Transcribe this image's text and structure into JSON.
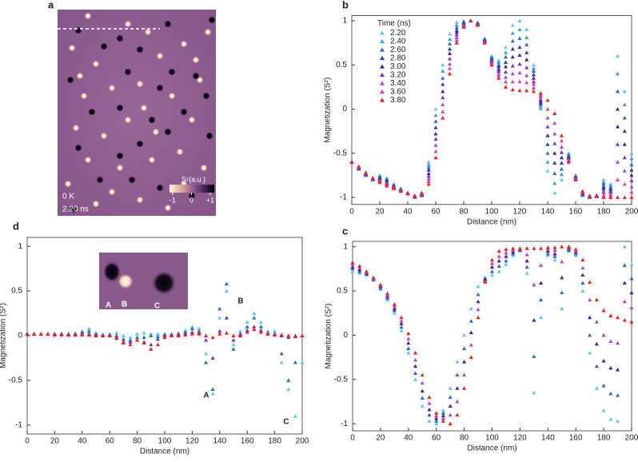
{
  "image_panel": {
    "label": "a",
    "temperature": "0 K",
    "time": "2.20 ns",
    "colorbar": {
      "label": "Sᶻ(a.u.)",
      "lim": [
        -1,
        1
      ],
      "ticks": [
        -1,
        0,
        {
          "value": 1,
          "label": "+1"
        }
      ]
    },
    "inset_labels": [
      "A",
      "B",
      "C"
    ]
  },
  "chart_data": [
    {
      "label": "b",
      "type": "scatter",
      "marker": "triangle",
      "xlabel": "Distance (nm)",
      "ylabel": "Magnetization (Sᶻ)",
      "x": [
        0,
        5,
        10,
        15,
        20,
        25,
        30,
        35,
        40,
        45,
        50,
        55,
        60,
        65,
        70,
        75,
        80,
        85,
        90,
        95,
        100,
        105,
        110,
        115,
        120,
        125,
        130,
        135,
        140,
        145,
        150,
        155,
        160,
        165,
        170,
        175,
        180,
        185,
        190,
        195,
        200
      ],
      "xlim": [
        0,
        200
      ],
      "xticks": [
        0,
        20,
        40,
        60,
        80,
        100,
        120,
        140,
        160,
        180,
        200
      ],
      "ylim": [
        -1.08,
        1.06
      ],
      "yticks": [
        -1,
        -0.5,
        0,
        0.5,
        1
      ],
      "legend_title": "Time (ns)",
      "legend": "top-left",
      "series": [
        {
          "name": "2.20",
          "color": "#5cc9f2",
          "values": [
            -0.6,
            -0.68,
            -0.75,
            -0.8,
            -0.75,
            -0.78,
            -0.85,
            -0.9,
            -0.95,
            -1,
            -0.98,
            -0.6,
            0,
            0.5,
            0.85,
            0.98,
            1,
            1,
            0.98,
            0.8,
            0.6,
            0.55,
            0.7,
            0.95,
            1,
            0.9,
            0.5,
            0,
            -0.7,
            -0.95,
            -0.8,
            -0.5,
            -0.75,
            -0.98,
            -1,
            -0.98,
            -0.8,
            -0.85,
            0.6,
            0.2,
            -0.5
          ]
        },
        {
          "name": "2.40",
          "color": "#3a9ee0",
          "values": [
            -0.6,
            -0.68,
            -0.75,
            -0.8,
            -0.76,
            -0.79,
            -0.86,
            -0.9,
            -0.95,
            -1,
            -0.98,
            -0.63,
            -0.07,
            0.43,
            0.79,
            0.95,
            0.99,
            1,
            0.98,
            0.79,
            0.59,
            0.53,
            0.64,
            0.86,
            0.9,
            0.81,
            0.46,
            0.02,
            -0.6,
            -0.84,
            -0.74,
            -0.51,
            -0.76,
            -0.97,
            -1,
            -0.98,
            -0.83,
            -0.87,
            0.4,
            0.05,
            -0.56
          ]
        },
        {
          "name": "2.60",
          "color": "#2a6cc6",
          "values": [
            -0.6,
            -0.67,
            -0.74,
            -0.8,
            -0.77,
            -0.8,
            -0.86,
            -0.91,
            -0.95,
            -0.99,
            -0.97,
            -0.66,
            -0.14,
            0.35,
            0.74,
            0.92,
            0.98,
            1,
            0.97,
            0.79,
            0.58,
            0.5,
            0.59,
            0.77,
            0.8,
            0.73,
            0.43,
            0.05,
            -0.5,
            -0.73,
            -0.68,
            -0.53,
            -0.76,
            -0.97,
            -1,
            -0.98,
            -0.85,
            -0.89,
            0.2,
            -0.1,
            -0.63
          ]
        },
        {
          "name": "2.80",
          "color": "#2b3f9e",
          "values": [
            -0.6,
            -0.67,
            -0.74,
            -0.79,
            -0.78,
            -0.81,
            -0.87,
            -0.91,
            -0.95,
            -0.99,
            -0.97,
            -0.69,
            -0.21,
            0.28,
            0.68,
            0.89,
            0.97,
            1,
            0.97,
            0.78,
            0.56,
            0.48,
            0.53,
            0.68,
            0.7,
            0.64,
            0.39,
            0.07,
            -0.4,
            -0.61,
            -0.61,
            -0.54,
            -0.77,
            -0.96,
            -0.99,
            -0.98,
            -0.88,
            -0.91,
            0,
            -0.25,
            -0.69
          ]
        },
        {
          "name": "3.00",
          "color": "#4a2192",
          "values": [
            -0.6,
            -0.67,
            -0.74,
            -0.79,
            -0.79,
            -0.83,
            -0.88,
            -0.92,
            -0.95,
            -0.99,
            -0.97,
            -0.73,
            -0.28,
            0.2,
            0.63,
            0.87,
            0.97,
            1,
            0.97,
            0.78,
            0.55,
            0.45,
            0.48,
            0.59,
            0.61,
            0.56,
            0.35,
            0.09,
            -0.3,
            -0.5,
            -0.55,
            -0.55,
            -0.78,
            -0.96,
            -0.99,
            -0.98,
            -0.9,
            -0.93,
            -0.2,
            -0.4,
            -0.75
          ]
        },
        {
          "name": "3.20",
          "color": "#7b30c2",
          "values": [
            -0.6,
            -0.66,
            -0.73,
            -0.79,
            -0.8,
            -0.84,
            -0.88,
            -0.92,
            -0.96,
            -0.99,
            -0.96,
            -0.76,
            -0.34,
            0.13,
            0.57,
            0.84,
            0.96,
            1,
            0.96,
            0.77,
            0.54,
            0.43,
            0.42,
            0.49,
            0.51,
            0.47,
            0.31,
            0.11,
            -0.2,
            -0.39,
            -0.49,
            -0.56,
            -0.78,
            -0.95,
            -0.99,
            -0.99,
            -0.93,
            -0.94,
            -0.4,
            -0.55,
            -0.81
          ]
        },
        {
          "name": "3.40",
          "color": "#b142d2",
          "values": [
            -0.6,
            -0.66,
            -0.73,
            -0.79,
            -0.81,
            -0.85,
            -0.89,
            -0.92,
            -0.96,
            -0.99,
            -0.96,
            -0.79,
            -0.41,
            0.05,
            0.51,
            0.81,
            0.95,
            1,
            0.96,
            0.76,
            0.53,
            0.4,
            0.36,
            0.4,
            0.41,
            0.38,
            0.28,
            0.14,
            -0.1,
            -0.28,
            -0.43,
            -0.58,
            -0.79,
            -0.94,
            -0.99,
            -0.99,
            -0.95,
            -0.96,
            -0.6,
            -0.7,
            -0.88
          ]
        },
        {
          "name": "3.60",
          "color": "#e2409f",
          "values": [
            -0.6,
            -0.65,
            -0.72,
            -0.78,
            -0.82,
            -0.86,
            -0.89,
            -0.93,
            -0.96,
            -0.98,
            -0.95,
            -0.82,
            -0.48,
            -0.03,
            0.46,
            0.78,
            0.94,
            1,
            0.95,
            0.76,
            0.51,
            0.38,
            0.31,
            0.31,
            0.31,
            0.3,
            0.24,
            0.16,
            0,
            -0.16,
            -0.36,
            -0.59,
            -0.79,
            -0.94,
            -0.98,
            -0.99,
            -0.98,
            -0.98,
            -0.8,
            -0.85,
            -0.94
          ]
        },
        {
          "name": "3.80",
          "color": "#f01e1e",
          "values": [
            -0.6,
            -0.65,
            -0.72,
            -0.78,
            -0.83,
            -0.87,
            -0.9,
            -0.93,
            -0.96,
            -0.98,
            -0.95,
            -0.85,
            -0.55,
            -0.1,
            0.4,
            0.75,
            0.93,
            1,
            0.95,
            0.75,
            0.5,
            0.35,
            0.25,
            0.22,
            0.21,
            0.21,
            0.2,
            0.18,
            0.1,
            -0.05,
            -0.3,
            -0.6,
            -0.8,
            -0.93,
            -0.98,
            -0.99,
            -1,
            -1,
            -1,
            -1,
            -1
          ]
        }
      ]
    },
    {
      "label": "c",
      "type": "scatter",
      "marker": "triangle",
      "xlabel": "Distance (nm)",
      "ylabel": "Magnetization (Sᶻ)",
      "x": [
        0,
        5,
        10,
        15,
        20,
        25,
        30,
        35,
        40,
        45,
        50,
        55,
        60,
        65,
        70,
        75,
        80,
        85,
        90,
        95,
        100,
        105,
        110,
        115,
        120,
        125,
        130,
        135,
        140,
        145,
        150,
        155,
        160,
        165,
        170,
        175,
        180,
        185,
        190,
        195,
        200
      ],
      "xlim": [
        0,
        200
      ],
      "xticks": [
        0,
        20,
        40,
        60,
        80,
        100,
        120,
        140,
        160,
        180,
        200
      ],
      "ylim": [
        -1.08,
        1.06
      ],
      "yticks": [
        -1,
        -0.5,
        0,
        0.5,
        1
      ],
      "series": [
        {
          "color": "#5cc9f2",
          "values": [
            0.72,
            0.7,
            0.68,
            0.62,
            0.52,
            0.4,
            0.25,
            0.05,
            -0.2,
            -0.5,
            -0.8,
            -0.97,
            -1,
            -0.85,
            -0.6,
            -0.3,
            0,
            0.3,
            0.55,
            0.65,
            0.68,
            0.72,
            0.8,
            0.9,
            0.95,
            0.7,
            -0.65,
            0.2,
            0.9,
            0.85,
            0.3,
            0.95,
            0.9,
            0.5,
            -0.2,
            -0.6,
            -0.85,
            -0.95,
            -0.97,
            1,
            0.8
          ]
        },
        {
          "color": "#2a6cc6",
          "values": [
            0.75,
            0.72,
            0.69,
            0.63,
            0.53,
            0.42,
            0.28,
            0.09,
            -0.15,
            -0.43,
            -0.71,
            -0.9,
            -0.97,
            -0.88,
            -0.7,
            -0.45,
            -0.15,
            0.16,
            0.46,
            0.64,
            0.72,
            0.78,
            0.84,
            0.92,
            0.96,
            0.77,
            -0.24,
            0.4,
            0.92,
            0.89,
            0.48,
            0.96,
            0.92,
            0.59,
            0,
            -0.35,
            -0.57,
            -0.66,
            -0.68,
            0.79,
            0.64
          ]
        },
        {
          "color": "#4a2192",
          "values": [
            0.77,
            0.74,
            0.7,
            0.64,
            0.55,
            0.44,
            0.3,
            0.13,
            -0.09,
            -0.35,
            -0.63,
            -0.84,
            -0.94,
            -0.91,
            -0.8,
            -0.6,
            -0.3,
            0.03,
            0.38,
            0.63,
            0.77,
            0.84,
            0.89,
            0.94,
            0.97,
            0.84,
            0.17,
            0.59,
            0.95,
            0.92,
            0.65,
            0.98,
            0.94,
            0.68,
            0.2,
            -0.1,
            -0.29,
            -0.37,
            -0.39,
            0.59,
            0.48
          ]
        },
        {
          "color": "#b142d2",
          "values": [
            0.8,
            0.76,
            0.71,
            0.64,
            0.56,
            0.45,
            0.33,
            0.16,
            -0.04,
            -0.28,
            -0.54,
            -0.77,
            -0.91,
            -0.94,
            -0.9,
            -0.75,
            -0.45,
            -0.11,
            0.29,
            0.61,
            0.81,
            0.89,
            0.93,
            0.96,
            0.97,
            0.91,
            0.57,
            0.79,
            0.97,
            0.96,
            0.83,
            0.99,
            0.95,
            0.76,
            0.4,
            0.15,
            0,
            -0.07,
            -0.09,
            0.38,
            0.31
          ]
        },
        {
          "color": "#f01e1e",
          "values": [
            0.82,
            0.78,
            0.72,
            0.65,
            0.57,
            0.47,
            0.35,
            0.2,
            0.02,
            -0.2,
            -0.45,
            -0.7,
            -0.88,
            -0.97,
            -1,
            -0.9,
            -0.6,
            -0.25,
            0.2,
            0.6,
            0.85,
            0.95,
            0.97,
            0.98,
            0.98,
            0.98,
            0.98,
            0.98,
            0.99,
            0.99,
            1,
            1,
            0.97,
            0.85,
            0.6,
            0.4,
            0.28,
            0.22,
            0.2,
            0.17,
            0.15
          ]
        }
      ]
    },
    {
      "label": "d",
      "type": "scatter",
      "marker": "triangle",
      "xlabel": "Distance (nm)",
      "ylabel": "Magnetization (Sᶻ)",
      "x": [
        0,
        5,
        10,
        15,
        20,
        25,
        30,
        35,
        40,
        45,
        50,
        55,
        60,
        65,
        70,
        75,
        80,
        85,
        90,
        95,
        100,
        105,
        110,
        115,
        120,
        125,
        130,
        135,
        140,
        145,
        150,
        155,
        160,
        165,
        170,
        175,
        180,
        185,
        190,
        195,
        200
      ],
      "xlim": [
        0,
        200
      ],
      "xticks": [
        0,
        20,
        40,
        60,
        80,
        100,
        120,
        140,
        160,
        180,
        200
      ],
      "ylim": [
        -1.1,
        1.1
      ],
      "yticks": [
        -1,
        -0.5,
        0,
        0.5,
        1
      ],
      "annotations": [
        "A",
        "B",
        "C"
      ],
      "series": [
        {
          "color": "#5cc9f2",
          "values": [
            0.02,
            0.02,
            0.02,
            0.02,
            0.02,
            0.02,
            0.02,
            0.03,
            0.05,
            0.08,
            0.03,
            0.01,
            0.02,
            0.03,
            0,
            -0.02,
            0.02,
            0.03,
            0.02,
            0.02,
            0.02,
            0.02,
            0.03,
            0.06,
            0.1,
            0.08,
            -0.2,
            -0.65,
            0.2,
            0.5,
            -0.1,
            0.05,
            0.15,
            0.25,
            0.15,
            0.05,
            0.05,
            -0.3,
            -0.6,
            -0.9,
            -0.3
          ]
        },
        {
          "color": "#2a6cc6",
          "values": [
            0.02,
            0.02,
            0.02,
            0.02,
            0.02,
            0.02,
            0.02,
            0.02,
            0.04,
            0.05,
            0.02,
            0.01,
            0.01,
            0,
            -0.04,
            -0.05,
            -0.02,
            -0.02,
            0,
            -0.01,
            0.01,
            0.01,
            0.02,
            0.04,
            0.08,
            0.05,
            -0.3,
            -0.6,
            0.3,
            0.58,
            -0.15,
            0.02,
            0.1,
            0.2,
            0.1,
            0.03,
            0.02,
            -0.2,
            -0.5,
            -0.3,
            0
          ]
        },
        {
          "color": "#7b30c2",
          "values": [
            0.02,
            0.02,
            0.02,
            0.02,
            0.02,
            0.02,
            0.01,
            0.01,
            0.02,
            0.02,
            0.01,
            0,
            0,
            -0.03,
            -0.07,
            -0.07,
            -0.05,
            -0.07,
            -0.1,
            -0.04,
            0,
            0.01,
            0.01,
            0.02,
            0.04,
            0.03,
            -0.05,
            -0.25,
            0.05,
            0.2,
            -0.05,
            0.01,
            0.06,
            0.1,
            0.06,
            0.02,
            0.01,
            0,
            -0.02,
            -0.01,
            0
          ]
        },
        {
          "color": "#f01e1e",
          "values": [
            0.02,
            0.02,
            0.02,
            0.02,
            0.01,
            0.01,
            0.01,
            0.01,
            0.01,
            0.01,
            0,
            0,
            0,
            -0.02,
            -0.08,
            -0.1,
            -0.05,
            -0.08,
            -0.15,
            -0.1,
            -0.02,
            0,
            0,
            0.01,
            0.02,
            0.02,
            0,
            -0.02,
            0.02,
            0.03,
            0,
            0,
            0.04,
            0.07,
            0.04,
            0.02,
            0.01,
            0.01,
            0,
            0,
            0
          ]
        }
      ]
    }
  ]
}
